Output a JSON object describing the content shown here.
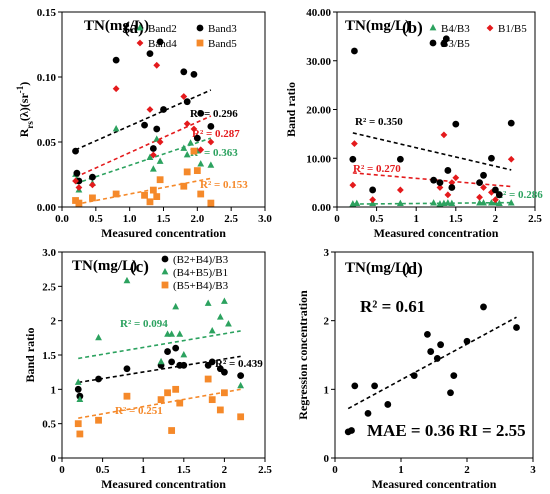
{
  "colors": {
    "black": "#000000",
    "red": "#e41a1c",
    "green": "#2ca25f",
    "orange": "#f5892a"
  },
  "chart_data": [
    {
      "id": "a",
      "type": "scatter",
      "title": "TN(mg/L)",
      "panel": "(a)",
      "xlabel": "Measured concentration",
      "ylabel": "R_rs(λ)(sr⁻¹)",
      "ylabel_parts": [
        "R",
        "rs",
        "(λ)(sr",
        "-1",
        ")"
      ],
      "xlim": [
        0,
        3.0
      ],
      "ylim": [
        0,
        0.15
      ],
      "xticks": [
        "0.0",
        "0.5",
        "1.0",
        "1.5",
        "2.0",
        "2.5",
        "3.0"
      ],
      "xtick_values": [
        0,
        0.5,
        1.0,
        1.5,
        2.0,
        2.5,
        3.0
      ],
      "yticks": [
        "0.00",
        "0.05",
        "0.10",
        "0.15"
      ],
      "ytick_values": [
        0,
        0.05,
        0.1,
        0.15
      ],
      "legend": [
        "Band2",
        "Band3",
        "Band4",
        "Band5"
      ],
      "series": [
        {
          "name": "Band2",
          "marker": "triangle",
          "color": "#2ca25f",
          "x": [
            0.2,
            0.22,
            0.25,
            0.45,
            0.8,
            1.3,
            1.35,
            1.4,
            1.45,
            1.8,
            1.85,
            1.9,
            2.0,
            2.05,
            2.2
          ],
          "y": [
            0.025,
            0.021,
            0.013,
            0.018,
            0.06,
            0.038,
            0.029,
            0.052,
            0.035,
            0.045,
            0.04,
            0.049,
            0.043,
            0.033,
            0.032
          ]
        },
        {
          "name": "Band3",
          "marker": "circle",
          "color": "#000000",
          "x": [
            0.2,
            0.22,
            0.25,
            0.45,
            0.8,
            1.22,
            1.3,
            1.35,
            1.4,
            1.45,
            1.5,
            1.8,
            1.85,
            1.95,
            2.0,
            2.05,
            2.2
          ],
          "y": [
            0.043,
            0.026,
            0.02,
            0.023,
            0.113,
            0.063,
            0.118,
            0.045,
            0.06,
            0.127,
            0.075,
            0.104,
            0.081,
            0.102,
            0.053,
            0.072,
            0.062
          ]
        },
        {
          "name": "Band4",
          "marker": "diamond",
          "color": "#e41a1c",
          "x": [
            0.2,
            0.25,
            0.45,
            0.8,
            1.3,
            1.35,
            1.4,
            1.45,
            1.8,
            1.85,
            1.95,
            2.05,
            2.2
          ],
          "y": [
            0.02,
            0.015,
            0.017,
            0.091,
            0.075,
            0.04,
            0.109,
            0.05,
            0.085,
            0.064,
            0.06,
            0.044,
            0.05
          ]
        },
        {
          "name": "Band5",
          "marker": "square",
          "color": "#f5892a",
          "x": [
            0.2,
            0.25,
            0.45,
            0.8,
            1.22,
            1.3,
            1.35,
            1.4,
            1.45,
            1.8,
            1.85,
            1.95,
            2.0,
            2.05,
            2.2
          ],
          "y": [
            0.005,
            0.003,
            0.007,
            0.01,
            0.009,
            0.004,
            0.013,
            0.008,
            0.021,
            0.016,
            0.027,
            0.043,
            0.028,
            0.01,
            0.003
          ]
        }
      ],
      "fits": [
        {
          "name": "Band3",
          "color": "#000000",
          "x": [
            0.2,
            2.2
          ],
          "y": [
            0.044,
            0.09
          ],
          "label": "R² = 0.296"
        },
        {
          "name": "Band4",
          "color": "#e41a1c",
          "x": [
            0.2,
            2.2
          ],
          "y": [
            0.023,
            0.07
          ],
          "label": "R² = 0.287"
        },
        {
          "name": "Band2",
          "color": "#2ca25f",
          "x": [
            0.2,
            2.2
          ],
          "y": [
            0.018,
            0.053
          ],
          "label": "R² = 0.363"
        },
        {
          "name": "Band5",
          "color": "#f5892a",
          "x": [
            0.2,
            2.2
          ],
          "y": [
            0.002,
            0.022
          ],
          "label": "R² = 0.153"
        }
      ]
    },
    {
      "id": "b",
      "type": "scatter",
      "title": "TN(mg/L)",
      "panel": "(b)",
      "xlabel": "Measured concentration",
      "ylabel": "Band ratio",
      "xlim": [
        0,
        2.5
      ],
      "ylim": [
        0,
        40
      ],
      "xticks": [
        "0",
        "0.5",
        "1",
        "1.5",
        "2",
        "2.5"
      ],
      "xtick_values": [
        0,
        0.5,
        1,
        1.5,
        2,
        2.5
      ],
      "yticks": [
        "0.00",
        "10.00",
        "20.00",
        "30.00",
        "40.00"
      ],
      "ytick_values": [
        0,
        10,
        20,
        30,
        40
      ],
      "legend": [
        "B4/B3",
        "B1/B5",
        "B3/B5"
      ],
      "series": [
        {
          "name": "B4/B3",
          "marker": "triangle",
          "color": "#2ca25f",
          "x": [
            0.2,
            0.25,
            0.45,
            0.8,
            1.22,
            1.3,
            1.35,
            1.4,
            1.45,
            1.8,
            1.85,
            1.95,
            2.0,
            2.05,
            2.2
          ],
          "y": [
            0.6,
            0.7,
            0.7,
            0.7,
            0.8,
            0.6,
            0.7,
            0.8,
            0.7,
            0.8,
            0.8,
            0.8,
            0.8,
            0.7,
            0.8
          ]
        },
        {
          "name": "B1/B5",
          "marker": "diamond",
          "color": "#e41a1c",
          "x": [
            0.2,
            0.22,
            0.45,
            0.8,
            1.3,
            1.35,
            1.4,
            1.45,
            1.5,
            1.8,
            1.85,
            1.95,
            2.0,
            2.2
          ],
          "y": [
            4.5,
            13,
            1.5,
            3.5,
            4.0,
            14.8,
            2.5,
            5.0,
            6.0,
            2.0,
            4.0,
            3.0,
            1.5,
            9.8
          ]
        },
        {
          "name": "B3/B5",
          "marker": "circle",
          "color": "#000000",
          "x": [
            0.2,
            0.22,
            0.45,
            0.8,
            1.22,
            1.3,
            1.35,
            1.38,
            1.4,
            1.45,
            1.5,
            1.8,
            1.85,
            1.95,
            2.0,
            2.05,
            2.2
          ],
          "y": [
            9.8,
            32,
            3.5,
            9.8,
            5.5,
            5.0,
            33.5,
            34.5,
            7.5,
            4.0,
            17,
            5.0,
            6.5,
            10,
            3.5,
            2.5,
            17.2
          ]
        }
      ],
      "fits": [
        {
          "name": "B3/B5",
          "color": "#000000",
          "x": [
            0.2,
            2.2
          ],
          "y": [
            15.2,
            7.6
          ],
          "label": "R² = 0.350"
        },
        {
          "name": "B1/B5",
          "color": "#e41a1c",
          "x": [
            0.2,
            2.2
          ],
          "y": [
            7.0,
            4.2
          ],
          "label": "R² = 0.270"
        },
        {
          "name": "B4/B3",
          "color": "#2ca25f",
          "x": [
            0.2,
            2.2
          ],
          "y": [
            0.6,
            0.9
          ],
          "label": "R² = 0.286"
        }
      ]
    },
    {
      "id": "c",
      "type": "scatter",
      "title": "TN(mg/L)",
      "panel": "(c)",
      "xlabel": "Measured concentration",
      "ylabel": "Band ratio",
      "xlim": [
        0,
        2.5
      ],
      "ylim": [
        0,
        3.0
      ],
      "xticks": [
        "0",
        "0.5",
        "1",
        "1.5",
        "2",
        "2.5"
      ],
      "xtick_values": [
        0,
        0.5,
        1,
        1.5,
        2,
        2.5
      ],
      "yticks": [
        "0",
        "0.5",
        "1",
        "1.5",
        "2",
        "2.5",
        "3.0"
      ],
      "ytick_values": [
        0,
        0.5,
        1,
        1.5,
        2,
        2.5,
        3.0
      ],
      "legend": [
        "(B2+B4)/B3",
        "(B4+B5)/B1",
        "(B5+B4)/B3"
      ],
      "series": [
        {
          "name": "(B2+B4)/B3",
          "marker": "circle",
          "color": "#000000",
          "x": [
            0.2,
            0.22,
            0.45,
            0.8,
            1.22,
            1.3,
            1.35,
            1.4,
            1.45,
            1.5,
            1.8,
            1.85,
            1.95,
            2.0,
            2.2
          ],
          "y": [
            1.0,
            0.9,
            1.15,
            1.3,
            1.35,
            1.55,
            1.4,
            1.6,
            1.35,
            1.35,
            1.35,
            1.4,
            1.3,
            1.25,
            1.2
          ]
        },
        {
          "name": "(B4+B5)/B1",
          "marker": "triangle",
          "color": "#2ca25f",
          "x": [
            0.2,
            0.22,
            0.45,
            0.8,
            1.22,
            1.3,
            1.35,
            1.4,
            1.45,
            1.5,
            1.8,
            1.85,
            1.95,
            2.0,
            2.05,
            2.2
          ],
          "y": [
            1.1,
            0.85,
            1.75,
            2.58,
            1.4,
            1.8,
            1.8,
            2.2,
            1.8,
            1.5,
            2.25,
            1.85,
            2.05,
            2.28,
            1.95,
            1.05
          ]
        },
        {
          "name": "(B5+B4)/B3",
          "marker": "square",
          "color": "#f5892a",
          "x": [
            0.2,
            0.22,
            0.45,
            0.8,
            1.22,
            1.3,
            1.35,
            1.4,
            1.45,
            1.8,
            1.85,
            1.95,
            2.0,
            2.2
          ],
          "y": [
            0.5,
            0.35,
            0.55,
            0.9,
            0.85,
            0.95,
            0.4,
            1.0,
            0.8,
            1.15,
            0.85,
            0.7,
            0.95,
            0.6
          ]
        }
      ],
      "fits": [
        {
          "name": "(B4+B5)/B1",
          "color": "#2ca25f",
          "x": [
            0.2,
            2.2
          ],
          "y": [
            1.45,
            1.85
          ],
          "label": "R² = 0.094"
        },
        {
          "name": "(B2+B4)/B3",
          "color": "#000000",
          "x": [
            0.2,
            2.2
          ],
          "y": [
            1.1,
            1.48
          ],
          "label": "R² = 0.439"
        },
        {
          "name": "(B5+B4)/B3",
          "color": "#f5892a",
          "x": [
            0.2,
            2.2
          ],
          "y": [
            0.58,
            1.0
          ],
          "label": "R² = 0.251"
        }
      ]
    },
    {
      "id": "d",
      "type": "scatter",
      "title": "TN(mg/L)",
      "panel": "(d)",
      "xlabel": "Measured concentration",
      "ylabel": "Regression concentration",
      "xlim": [
        0,
        3
      ],
      "ylim": [
        0,
        3
      ],
      "xticks": [
        "0",
        "1",
        "2",
        "3"
      ],
      "xtick_values": [
        0,
        1,
        2,
        3
      ],
      "yticks": [
        "0",
        "1",
        "2",
        "3"
      ],
      "ytick_values": [
        0,
        1,
        2,
        3
      ],
      "stat_r2": "R² = 0.61",
      "stat_errors": "MAE = 0.36 RI = 2.55",
      "series": [
        {
          "name": "TN",
          "marker": "circle",
          "color": "#000000",
          "x": [
            0.2,
            0.25,
            0.3,
            0.5,
            0.6,
            0.8,
            1.2,
            1.4,
            1.45,
            1.55,
            1.6,
            1.75,
            1.8,
            2.0,
            2.25,
            2.75
          ],
          "y": [
            0.38,
            0.4,
            1.05,
            0.65,
            1.05,
            0.78,
            1.2,
            1.8,
            1.55,
            1.45,
            1.65,
            0.95,
            1.2,
            1.7,
            2.2,
            1.9
          ]
        }
      ],
      "fits": [
        {
          "name": "TN",
          "color": "#000000",
          "x": [
            0.2,
            2.75
          ],
          "y": [
            0.72,
            2.05
          ],
          "label": ""
        }
      ]
    }
  ]
}
